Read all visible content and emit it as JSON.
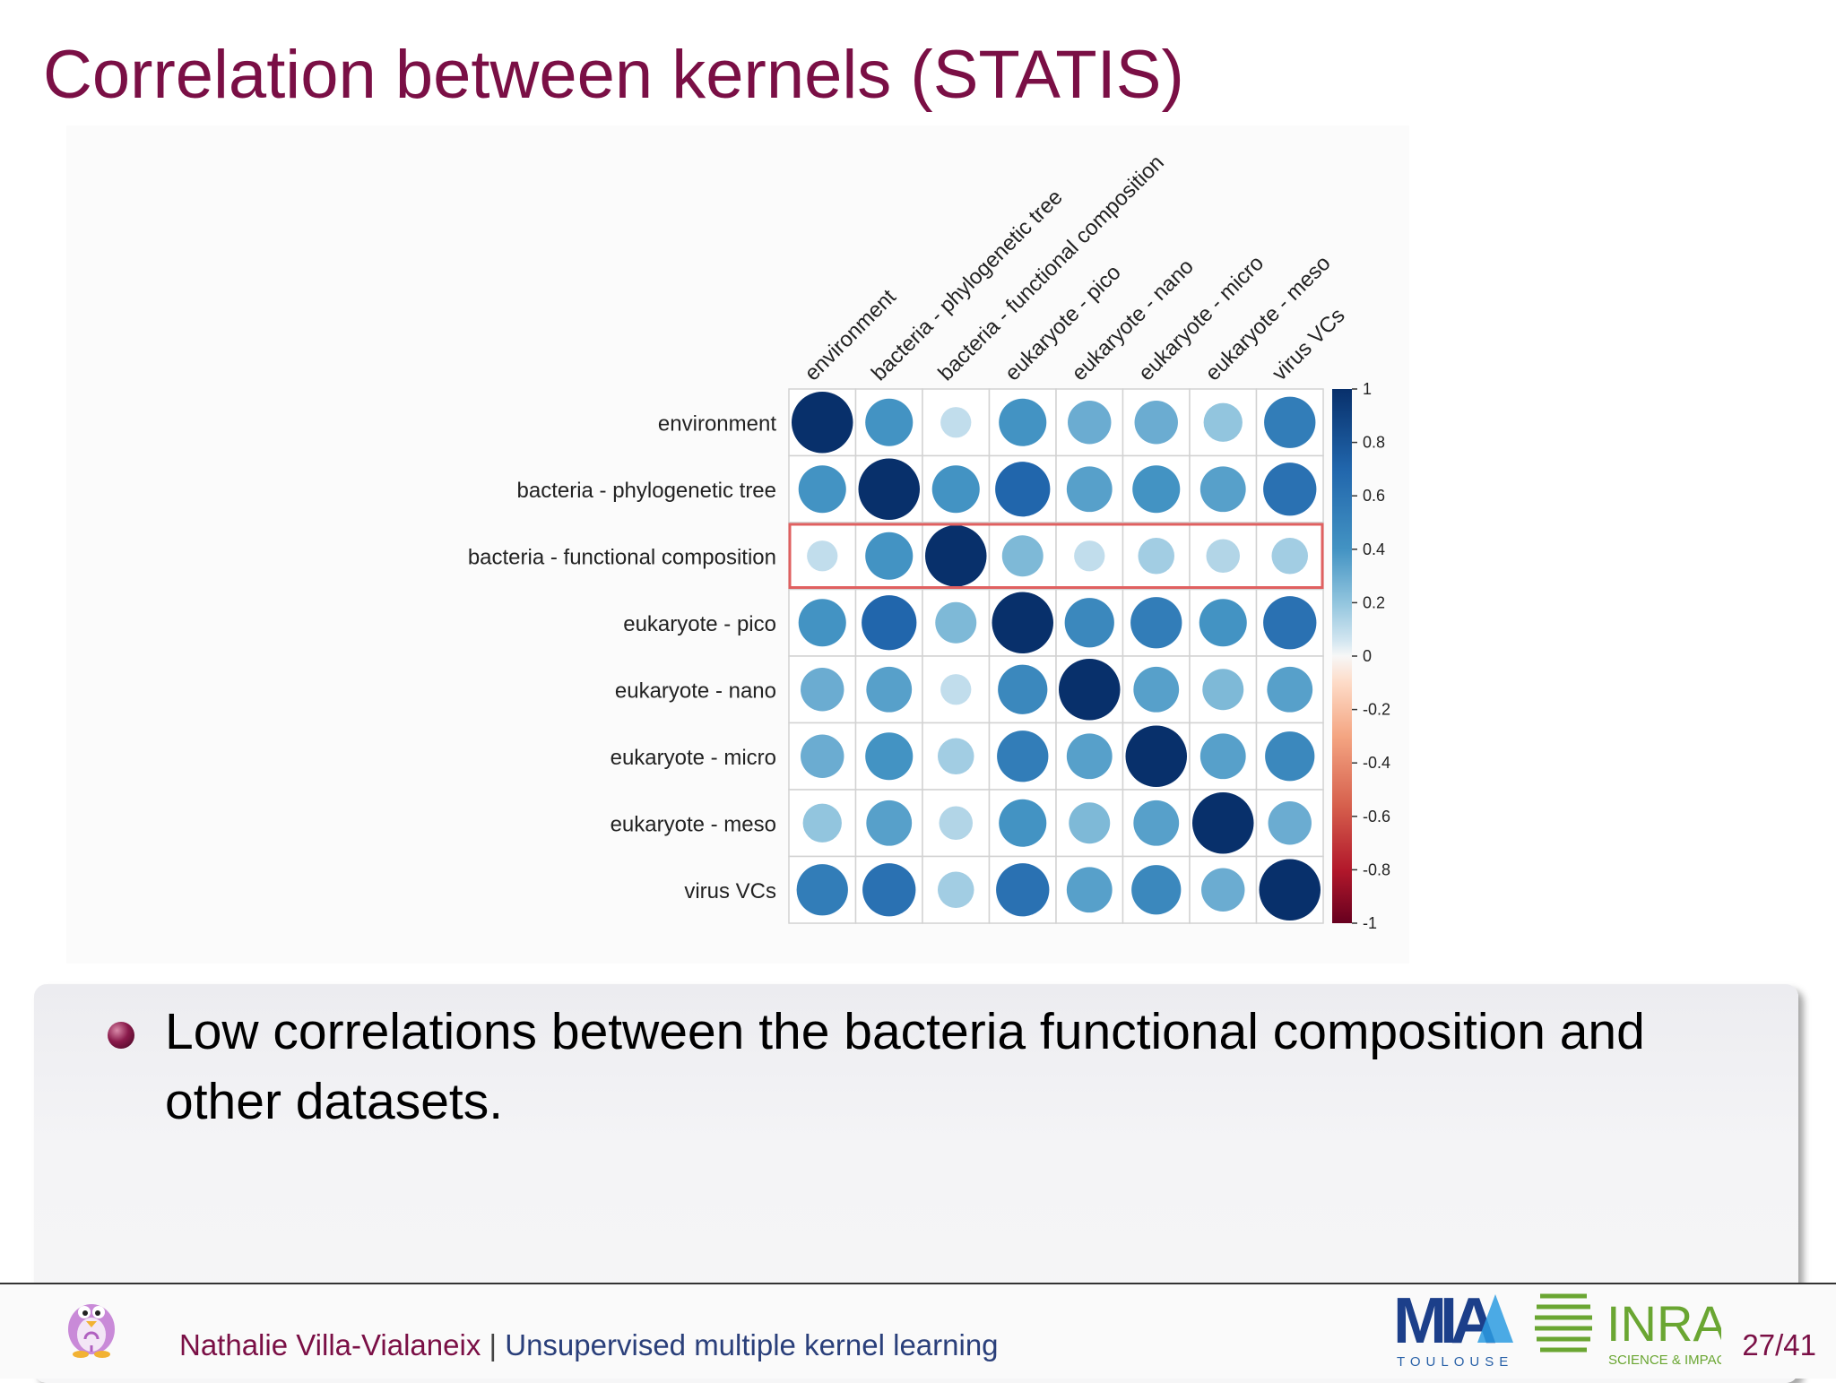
{
  "slide": {
    "title": "Correlation between kernels (STATIS)",
    "bullet": "Low correlations between the bacteria functional composition and other datasets.",
    "footer": {
      "author": "Nathalie Villa-Vialaneix",
      "separator": "|",
      "talk_title": "Unsupervised multiple kernel learning",
      "page": "27/41"
    },
    "logos": {
      "mia_text": "MIA",
      "mia_caption": "TOULOUSE",
      "inra_text": "INRA",
      "inra_caption": "SCIENCE & IMPACT",
      "penguin_icon": "penguin-logo-icon"
    },
    "colors": {
      "title": "#7a0f45",
      "highlight_box": "#e06060",
      "strong_positive": "#08306b",
      "negative": "#67001f"
    }
  },
  "chart_data": {
    "type": "heatmap",
    "style": "corrplot-circle",
    "title": "",
    "labels": [
      "environment",
      "bacteria - phylogenetic tree",
      "bacteria - functional composition",
      "eukaryote - pico",
      "eukaryote - nano",
      "eukaryote - micro",
      "eukaryote - meso",
      "virus VCs"
    ],
    "matrix": [
      [
        1.0,
        0.6,
        0.25,
        0.6,
        0.5,
        0.5,
        0.4,
        0.7
      ],
      [
        0.6,
        1.0,
        0.6,
        0.8,
        0.55,
        0.6,
        0.55,
        0.75
      ],
      [
        0.25,
        0.6,
        1.0,
        0.45,
        0.25,
        0.35,
        0.3,
        0.35
      ],
      [
        0.6,
        0.8,
        0.45,
        1.0,
        0.65,
        0.7,
        0.6,
        0.75
      ],
      [
        0.5,
        0.55,
        0.25,
        0.65,
        1.0,
        0.55,
        0.45,
        0.55
      ],
      [
        0.5,
        0.6,
        0.35,
        0.7,
        0.55,
        1.0,
        0.55,
        0.65
      ],
      [
        0.4,
        0.55,
        0.3,
        0.6,
        0.45,
        0.55,
        1.0,
        0.5
      ],
      [
        0.7,
        0.75,
        0.35,
        0.75,
        0.55,
        0.65,
        0.5,
        1.0
      ]
    ],
    "highlighted_row": "bacteria - functional composition",
    "colorbar": {
      "range": [
        -1,
        1
      ],
      "ticks": [
        "1",
        "0.8",
        "0.6",
        "0.4",
        "0.2",
        "0",
        "-0.2",
        "-0.4",
        "-0.6",
        "-0.8",
        "-1"
      ]
    },
    "grid": true,
    "legend": "right"
  }
}
